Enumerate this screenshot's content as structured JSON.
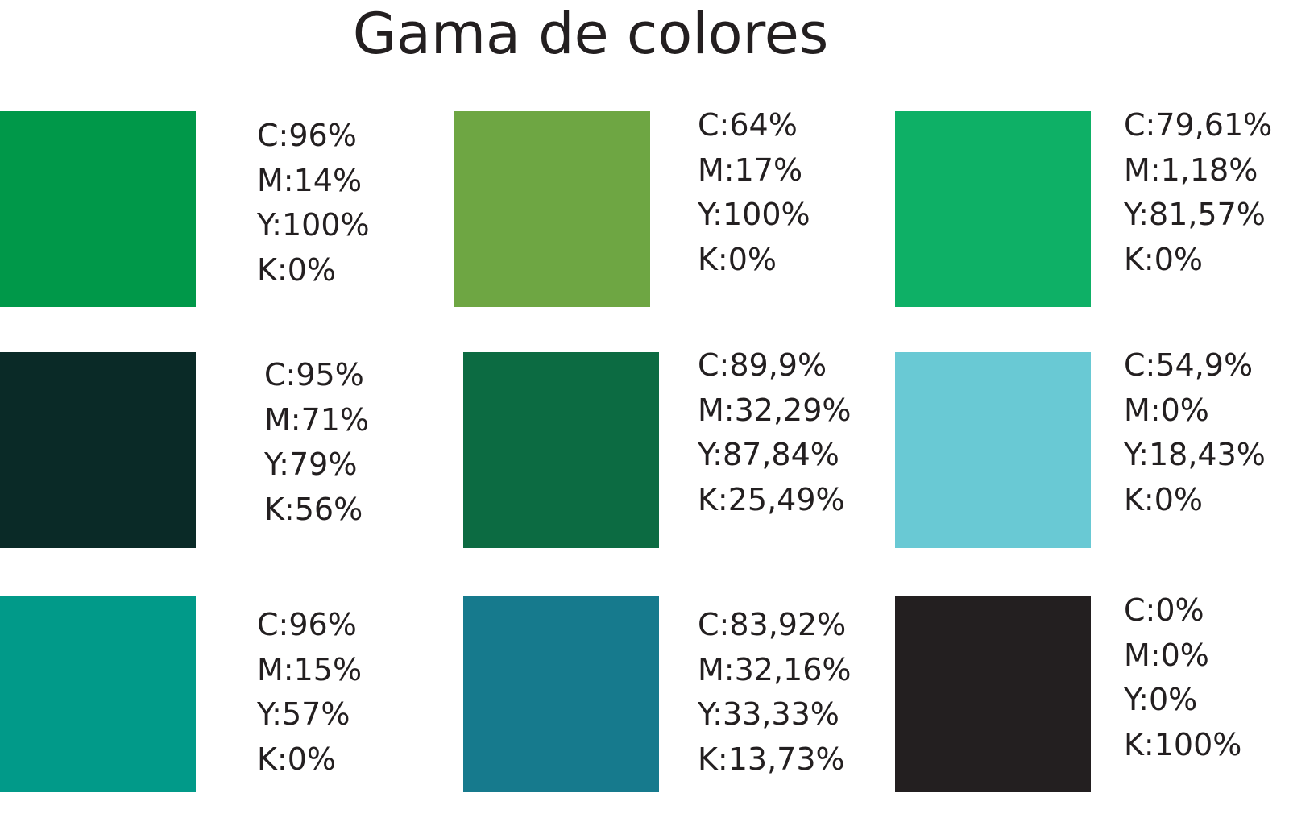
{
  "title": "Gama de colores",
  "swatches": [
    {
      "color": "#009849",
      "values": {
        "c": "C:96%",
        "m": "M:14%",
        "y": "Y:100%",
        "k": "K:0%"
      }
    },
    {
      "color": "#6ea643",
      "values": {
        "c": "C:64%",
        "m": "M:17%",
        "y": "Y:100%",
        "k": "K:0%"
      }
    },
    {
      "color": "#0eb066",
      "values": {
        "c": "C:79,61%",
        "m": "M:1,18%",
        "y": "Y:81,57%",
        "k": "K:0%"
      }
    },
    {
      "color": "#0a2a27",
      "values": {
        "c": "C:95%",
        "m": "M:71%",
        "y": "Y:79%",
        "k": "K:56%"
      }
    },
    {
      "color": "#0c6b42",
      "values": {
        "c": "C:89,9%",
        "m": "M:32,29%",
        "y": "Y:87,84%",
        "k": "K:25,49%"
      }
    },
    {
      "color": "#69c9d4",
      "values": {
        "c": "C:54,9%",
        "m": "M:0%",
        "y": "Y:18,43%",
        "k": "K:0%"
      }
    },
    {
      "color": "#019a89",
      "values": {
        "c": "C:96%",
        "m": "M:15%",
        "y": "Y:57%",
        "k": "K:0%"
      }
    },
    {
      "color": "#167a8d",
      "values": {
        "c": "C:83,92%",
        "m": "M:32,16%",
        "y": "Y:33,33%",
        "k": "K:13,73%"
      }
    },
    {
      "color": "#231f20",
      "values": {
        "c": "C:0%",
        "m": "M:0%",
        "y": "Y:0%",
        "k": "K:100%"
      }
    }
  ]
}
